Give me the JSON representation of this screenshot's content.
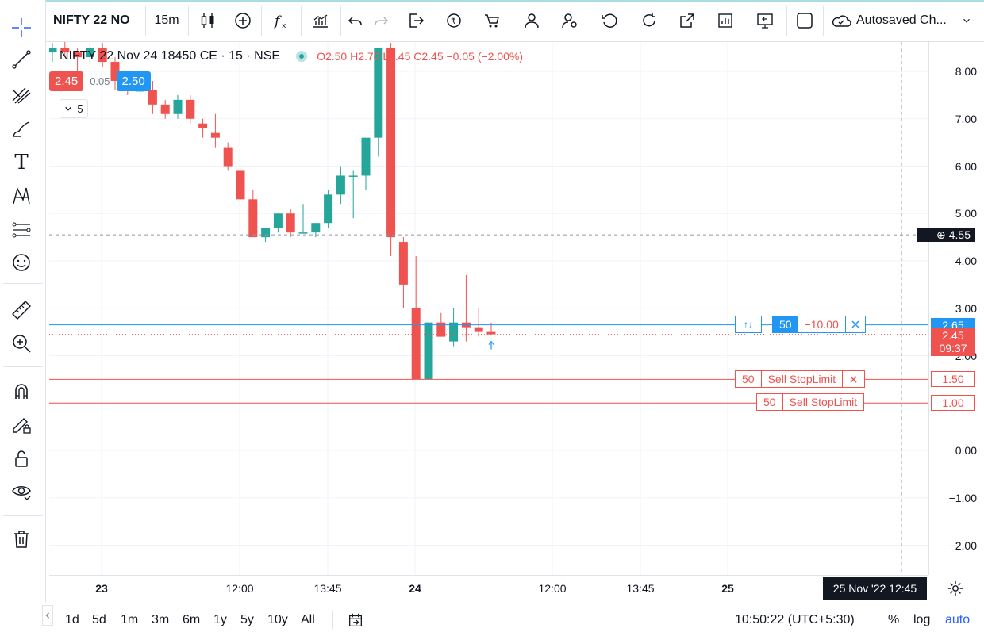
{
  "header": {
    "symbol": "NIFTY 22 NO",
    "interval": "15m",
    "autosave_label": "Autosaved Ch...",
    "icons": [
      "candles-icon",
      "add-compare-icon",
      "indicators-icon",
      "templates-icon",
      "undo-icon",
      "redo-icon",
      "export-icon",
      "replay-icon",
      "alert-icon",
      "user-icon",
      "user-settings-icon",
      "reset-icon",
      "refresh-icon",
      "external-link-icon",
      "calendar-icon",
      "screen-icon",
      "fullscreen-icon",
      "cloud-icon",
      "chevron-down-icon"
    ]
  },
  "left_tools": [
    "crosshair-icon",
    "trend-line-icon",
    "pitchfork-icon",
    "brush-icon",
    "text-icon",
    "pattern-icon",
    "prediction-icon",
    "emoji-icon",
    "ruler-icon",
    "zoom-icon",
    "magnet-icon",
    "lock-drawing-icon",
    "unlock-icon",
    "eye-icon",
    "trash-icon"
  ],
  "legend": {
    "title": "NIFTY 22 Nov 24 18450 CE · 15 · NSE",
    "ohlc": "O2.50  H2.70  L2.45  C2.45  −0.05 (−2.00%)"
  },
  "trade": {
    "sell": "2.45",
    "spread": "0.05",
    "buy": "2.50",
    "qty": "5"
  },
  "price_axis": {
    "ticks": [
      "8.00",
      "7.00",
      "6.00",
      "5.00",
      "4.00",
      "3.00",
      "2.00",
      "0.00",
      "−1.00",
      "−2.00"
    ],
    "crosshair_price": "4.55",
    "position_price": "2.65",
    "last_price": "2.45",
    "countdown": "09:37",
    "order1_price": "1.50",
    "order2_price": "1.00"
  },
  "position_line": {
    "qty": "50",
    "pnl": "−10.00"
  },
  "orders": [
    {
      "qty": "50",
      "label": "Sell StopLimit"
    },
    {
      "qty": "50",
      "label": "Sell StopLimit"
    }
  ],
  "time_axis": {
    "ticks": [
      "23",
      "12:00",
      "13:45",
      "24",
      "12:00",
      "13:45",
      "25"
    ],
    "crosshair_time": "25 Nov '22   12:45"
  },
  "bottom": {
    "ranges": [
      "1d",
      "5d",
      "1m",
      "3m",
      "6m",
      "1y",
      "5y",
      "10y",
      "All"
    ],
    "clock": "10:50:22 (UTC+5:30)",
    "pct": "%",
    "log": "log",
    "auto": "auto"
  },
  "colors": {
    "up": "#26a69a",
    "down": "#ef5350",
    "accent": "#2196f3"
  },
  "chart_data": {
    "type": "candlestick",
    "symbol": "NIFTY 22 Nov 24 18450 CE",
    "interval": "15",
    "candles": [
      {
        "o": 8.4,
        "h": 8.6,
        "l": 8.2,
        "c": 8.5
      },
      {
        "o": 8.5,
        "h": 8.7,
        "l": 8.3,
        "c": 8.4
      },
      {
        "o": 8.4,
        "h": 8.5,
        "l": 8.0,
        "c": 8.3
      },
      {
        "o": 8.3,
        "h": 8.6,
        "l": 8.2,
        "c": 8.5
      },
      {
        "o": 8.5,
        "h": 8.6,
        "l": 8.1,
        "c": 8.2
      },
      {
        "o": 8.2,
        "h": 8.3,
        "l": 7.6,
        "c": 7.8
      },
      {
        "o": 7.8,
        "h": 8.0,
        "l": 7.5,
        "c": 7.6
      },
      {
        "o": 7.6,
        "h": 7.9,
        "l": 7.5,
        "c": 7.6
      },
      {
        "o": 7.6,
        "h": 7.8,
        "l": 7.1,
        "c": 7.3
      },
      {
        "o": 7.3,
        "h": 7.4,
        "l": 7.0,
        "c": 7.1
      },
      {
        "o": 7.1,
        "h": 7.5,
        "l": 7.0,
        "c": 7.4
      },
      {
        "o": 7.4,
        "h": 7.5,
        "l": 6.9,
        "c": 7.0
      },
      {
        "o": 6.9,
        "h": 7.0,
        "l": 6.6,
        "c": 6.8
      },
      {
        "o": 6.7,
        "h": 7.1,
        "l": 6.4,
        "c": 6.6
      },
      {
        "o": 6.4,
        "h": 6.5,
        "l": 5.9,
        "c": 6.0
      },
      {
        "o": 5.9,
        "h": 5.9,
        "l": 5.3,
        "c": 5.3
      },
      {
        "o": 5.3,
        "h": 5.5,
        "l": 4.5,
        "c": 4.5
      },
      {
        "o": 4.5,
        "h": 4.7,
        "l": 4.4,
        "c": 4.7
      },
      {
        "o": 4.7,
        "h": 5.0,
        "l": 4.6,
        "c": 5.0
      },
      {
        "o": 5.0,
        "h": 5.1,
        "l": 4.5,
        "c": 4.6
      },
      {
        "o": 4.6,
        "h": 5.2,
        "l": 4.6,
        "c": 4.6
      },
      {
        "o": 4.6,
        "h": 4.8,
        "l": 4.5,
        "c": 4.8
      },
      {
        "o": 4.8,
        "h": 5.5,
        "l": 4.7,
        "c": 5.4
      },
      {
        "o": 5.4,
        "h": 6.0,
        "l": 5.2,
        "c": 5.8
      },
      {
        "o": 5.8,
        "h": 5.9,
        "l": 4.9,
        "c": 5.8
      },
      {
        "o": 5.8,
        "h": 6.5,
        "l": 5.5,
        "c": 6.6
      },
      {
        "o": 6.6,
        "h": 8.5,
        "l": 6.2,
        "c": 8.5
      },
      {
        "o": 8.5,
        "h": 8.6,
        "l": 4.1,
        "c": 4.5
      },
      {
        "o": 4.4,
        "h": 4.5,
        "l": 3.0,
        "c": 3.5
      },
      {
        "o": 3.0,
        "h": 4.1,
        "l": 1.5,
        "c": 1.5
      },
      {
        "o": 1.5,
        "h": 2.7,
        "l": 1.5,
        "c": 2.7
      },
      {
        "o": 2.7,
        "h": 2.9,
        "l": 2.4,
        "c": 2.4
      },
      {
        "o": 2.3,
        "h": 3.0,
        "l": 2.2,
        "c": 2.7
      },
      {
        "o": 2.7,
        "h": 3.7,
        "l": 2.3,
        "c": 2.6
      },
      {
        "o": 2.6,
        "h": 3.0,
        "l": 2.4,
        "c": 2.5
      },
      {
        "o": 2.5,
        "h": 2.7,
        "l": 2.45,
        "c": 2.45
      }
    ],
    "ylim": [
      -2.3,
      8.6
    ],
    "position_price": 2.65,
    "last_price": 2.45,
    "crosshair_price": 4.55,
    "orders": [
      1.5,
      1.0
    ]
  }
}
